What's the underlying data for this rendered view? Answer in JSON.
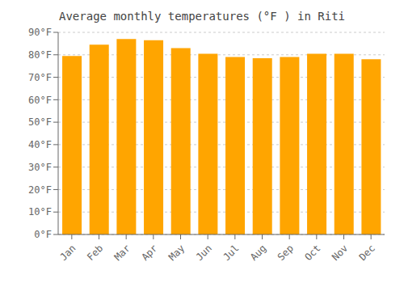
{
  "chart_data": {
    "type": "bar",
    "title": "Average monthly temperatures (°F ) in Riti",
    "categories": [
      "Jan",
      "Feb",
      "Mar",
      "Apr",
      "May",
      "Jun",
      "Jul",
      "Aug",
      "Sep",
      "Oct",
      "Nov",
      "Dec"
    ],
    "values": [
      79.5,
      84.5,
      87.0,
      86.5,
      83.0,
      80.5,
      79.0,
      78.5,
      79.0,
      80.5,
      80.5,
      78.0
    ],
    "color": "#FFA500",
    "ylim": [
      0,
      90
    ],
    "yticks": [
      {
        "value": 0,
        "label": "0°F"
      },
      {
        "value": 10,
        "label": "10°F"
      },
      {
        "value": 20,
        "label": "20°F"
      },
      {
        "value": 30,
        "label": "30°F"
      },
      {
        "value": 40,
        "label": "40°F"
      },
      {
        "value": 50,
        "label": "50°F"
      },
      {
        "value": 60,
        "label": "60°F"
      },
      {
        "value": 70,
        "label": "70°F"
      },
      {
        "value": 80,
        "label": "80°F"
      },
      {
        "value": 90,
        "label": "90°F"
      }
    ],
    "grid": true
  }
}
